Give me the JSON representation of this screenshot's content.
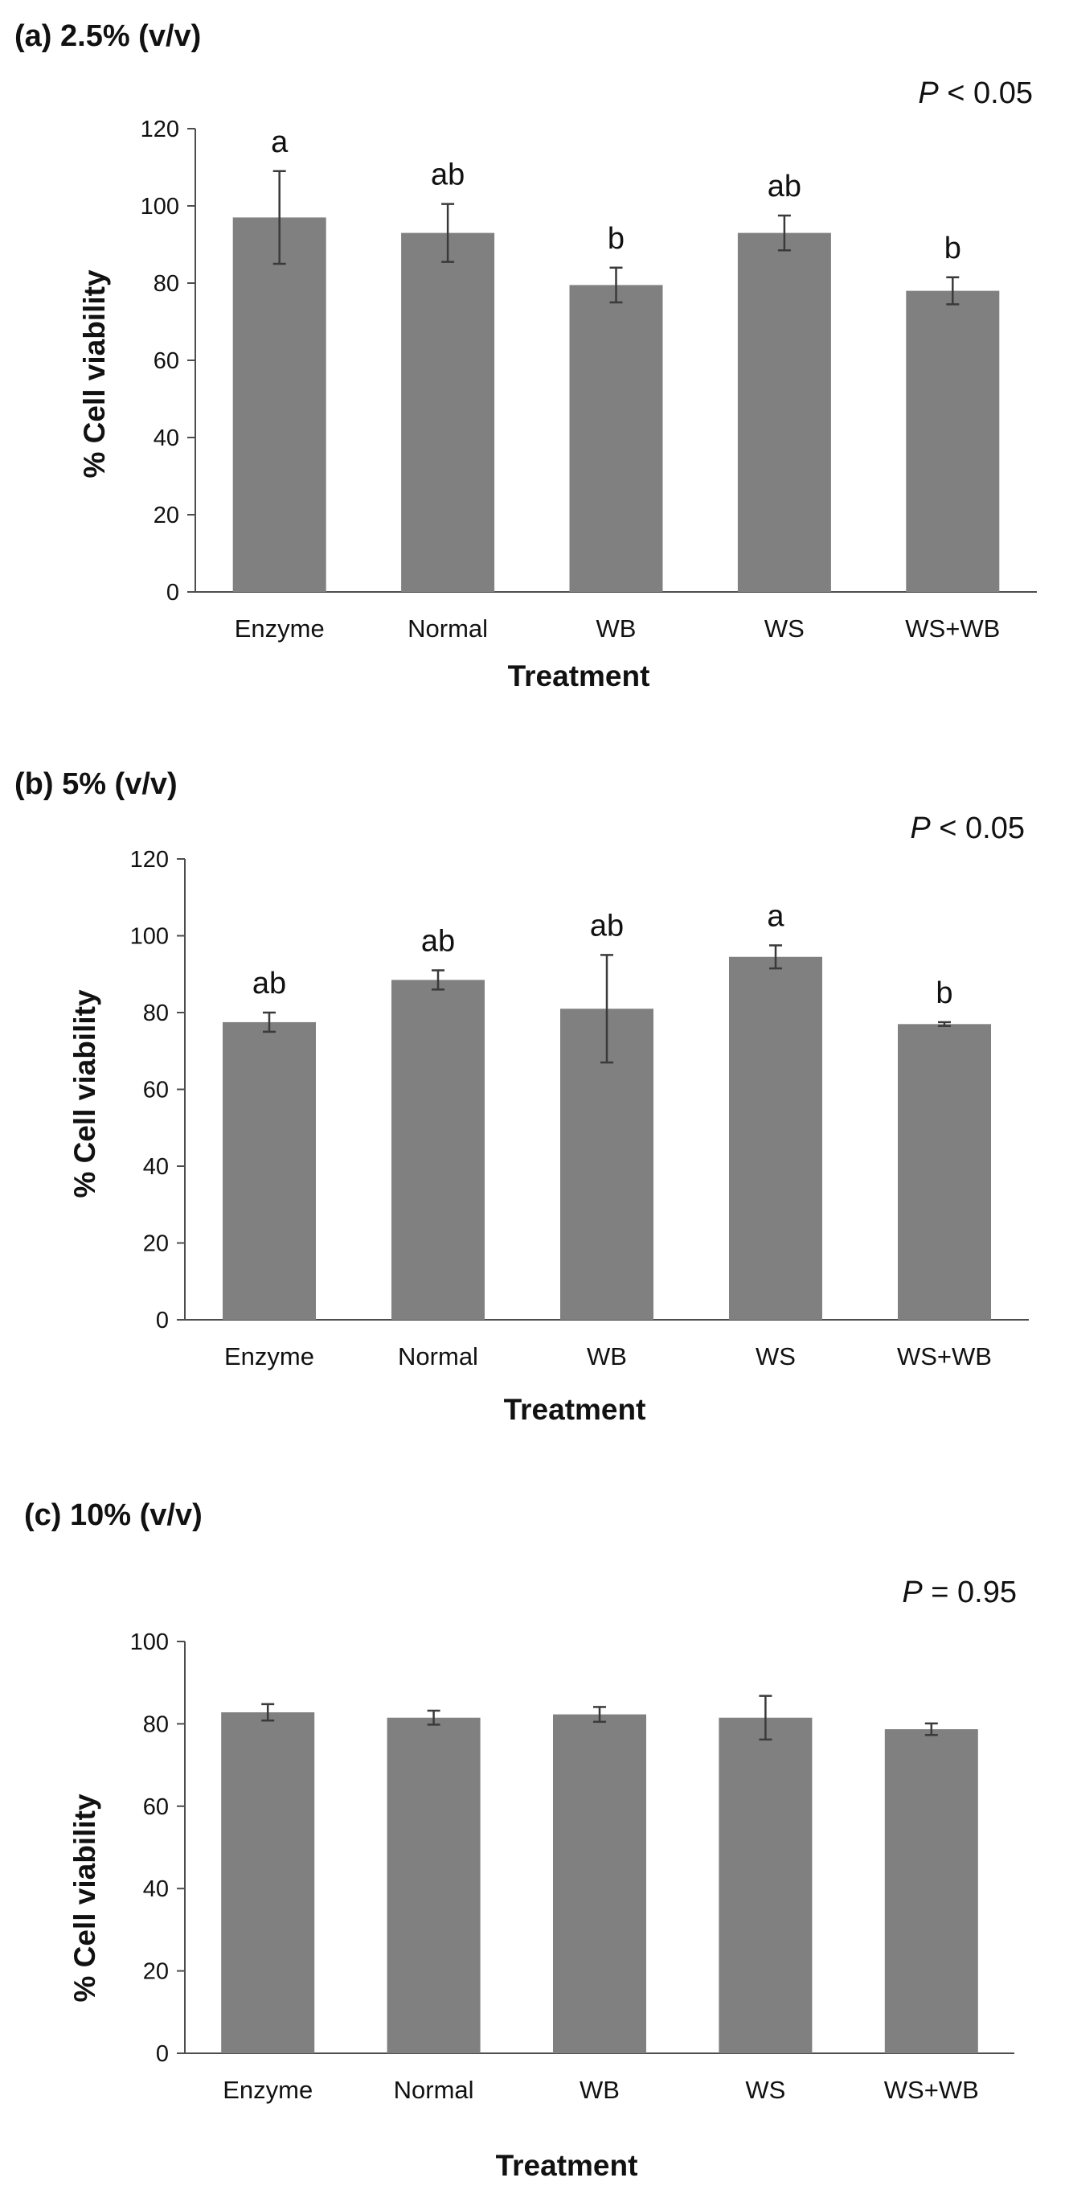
{
  "chart_data": [
    {
      "type": "bar",
      "title": "(a) 2.5% (v/v)",
      "p_value": {
        "symbol": "P",
        "text": " < 0.05"
      },
      "xlabel": "Treatment",
      "ylabel": "% Cell viability",
      "categories": [
        "Enzyme",
        "Normal",
        "WB",
        "WS",
        "WS+WB"
      ],
      "values": [
        97,
        93,
        79.5,
        93,
        78
      ],
      "errors": [
        12,
        7.5,
        4.5,
        4.5,
        3.5
      ],
      "significance": [
        "a",
        "ab",
        "b",
        "ab",
        "b"
      ],
      "ylim": [
        0,
        120
      ],
      "yticks": [
        0,
        20,
        40,
        60,
        80,
        100,
        120
      ],
      "grid": false
    },
    {
      "type": "bar",
      "title": "(b) 5% (v/v)",
      "p_value": {
        "symbol": "P",
        "text": " < 0.05"
      },
      "xlabel": "Treatment",
      "ylabel": "% Cell viability",
      "categories": [
        "Enzyme",
        "Normal",
        "WB",
        "WS",
        "WS+WB"
      ],
      "values": [
        77.5,
        88.5,
        81,
        94.5,
        77
      ],
      "errors": [
        2.5,
        2.5,
        14,
        3,
        0.5
      ],
      "significance": [
        "ab",
        "ab",
        "ab",
        "a",
        "b"
      ],
      "ylim": [
        0,
        120
      ],
      "yticks": [
        0,
        20,
        40,
        60,
        80,
        100,
        120
      ],
      "grid": false
    },
    {
      "type": "bar",
      "title": "(c) 10% (v/v)",
      "p_value": {
        "symbol": "P",
        "text": " = 0.95"
      },
      "xlabel": "Treatment",
      "ylabel": "% Cell viability",
      "categories": [
        "Enzyme",
        "Normal",
        "WB",
        "WS",
        "WS+WB"
      ],
      "values": [
        82.8,
        81.5,
        82.3,
        81.5,
        78.7
      ],
      "errors": [
        2,
        1.7,
        1.8,
        5.3,
        1.4
      ],
      "significance": [
        "",
        "",
        "",
        "",
        ""
      ],
      "ylim": [
        0,
        100
      ],
      "yticks": [
        0,
        20,
        40,
        60,
        80,
        100
      ],
      "grid": false
    }
  ]
}
